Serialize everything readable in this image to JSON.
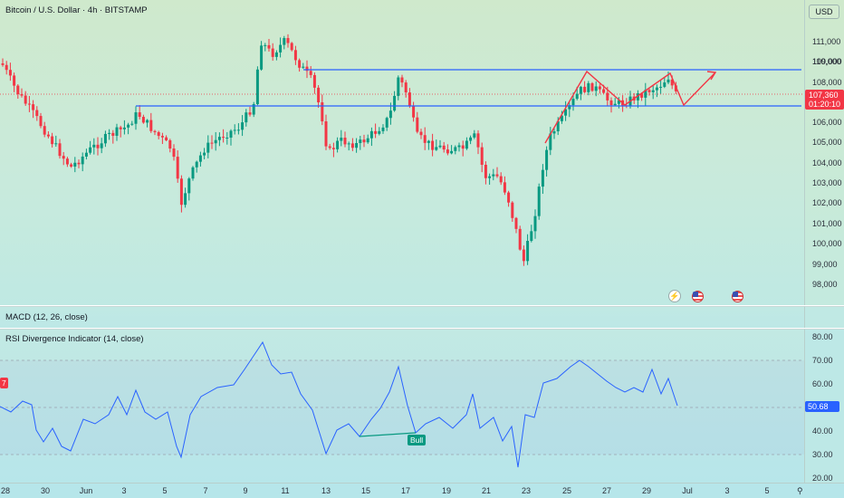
{
  "header": {
    "symbol_title": "Bitcoin / U.S. Dollar · 4h · BITSTAMP",
    "currency_button": "USD"
  },
  "price_axis": {
    "ticks": [
      "111,000",
      "110,000",
      "109,000",
      "108,000",
      "106,000",
      "105,000",
      "104,000",
      "103,000",
      "102,000",
      "101,000",
      "100,000",
      "99,000",
      "98,000"
    ],
    "current_price": "107,360",
    "countdown": "01:20:10"
  },
  "indicators": {
    "macd_label": "MACD (12, 26, close)",
    "rsi_label": "RSI Divergence Indicator (14, close)",
    "rsi_value": "50.68",
    "rsi_ticks": [
      "80.00",
      "70.00",
      "60.00",
      "40.00",
      "30.00",
      "20.00"
    ],
    "bull_label": "Bull",
    "left_marker": "7"
  },
  "time_axis": {
    "labels": [
      "28",
      "30",
      "Jun",
      "3",
      "5",
      "7",
      "9",
      "11",
      "13",
      "15",
      "17",
      "19",
      "21",
      "23",
      "25",
      "27",
      "29",
      "Jul",
      "3",
      "5"
    ]
  },
  "colors": {
    "up": "#089981",
    "down": "#f23645",
    "levels": "#2962ff",
    "rsi_line": "#2962ff",
    "projection": "#f23645"
  },
  "icons": [
    "lightning-icon",
    "us-flag-icon",
    "us-flag-icon",
    "zoom-icon"
  ]
}
